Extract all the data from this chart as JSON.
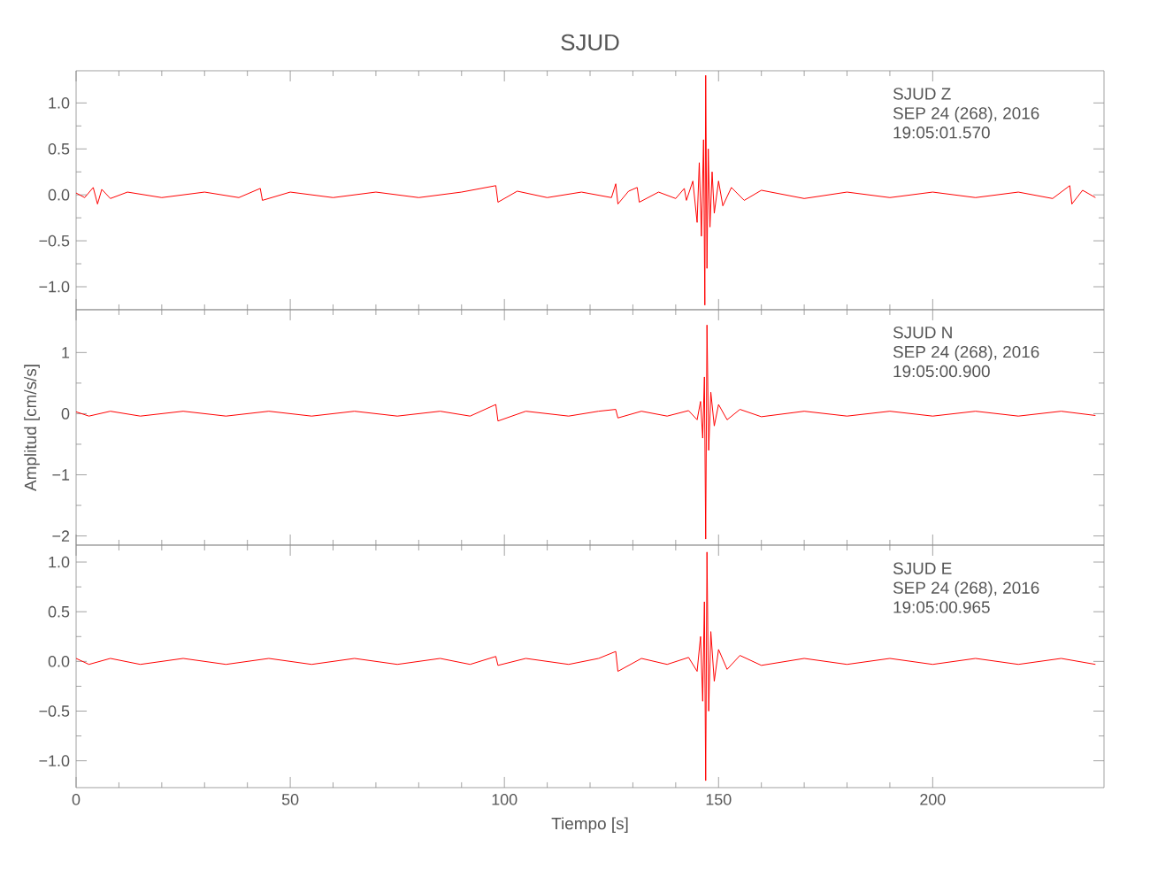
{
  "chart_data": [
    {
      "type": "line",
      "title": "SJUD",
      "annotations": [
        "SJUD Z",
        "SEP 24 (268), 2016",
        "19:05:01.570"
      ],
      "tick_labels": "y",
      "xlim": [
        0,
        240
      ],
      "xticks": [
        0,
        50,
        100,
        150,
        200
      ],
      "ylim": [
        -1.25,
        1.35
      ],
      "yticks": [
        {
          "value": -1,
          "label": "−1.0"
        },
        {
          "value": -0.5,
          "label": "−0.5"
        },
        {
          "value": 0,
          "label": "0.0"
        },
        {
          "value": 0.5,
          "label": "0.5"
        },
        {
          "value": 1,
          "label": "1.0"
        }
      ],
      "x": [
        0,
        2,
        4,
        5,
        6,
        8,
        12,
        20,
        30,
        38,
        43,
        43.5,
        50,
        60,
        70,
        80,
        90,
        98,
        98.5,
        103,
        110,
        118,
        125,
        126,
        126.5,
        129,
        131,
        131.5,
        136,
        140,
        142,
        142.5,
        144,
        145,
        145.5,
        146,
        146.5,
        146.8,
        147,
        147.3,
        147.6,
        148,
        148.5,
        149,
        150,
        151,
        153,
        156,
        160,
        170,
        180,
        190,
        200,
        210,
        220,
        228,
        232,
        232.5,
        235,
        238
      ],
      "series": [
        {
          "color": "#ff0000",
          "values": [
            0.02,
            -0.03,
            0.08,
            -0.1,
            0.06,
            -0.04,
            0.03,
            -0.03,
            0.03,
            -0.03,
            0.07,
            -0.06,
            0.03,
            -0.03,
            0.03,
            -0.03,
            0.03,
            0.1,
            -0.08,
            0.04,
            -0.03,
            0.03,
            -0.03,
            0.12,
            -0.1,
            0.04,
            0.08,
            -0.08,
            0.03,
            -0.04,
            0.07,
            -0.06,
            0.15,
            -0.3,
            0.35,
            -0.45,
            0.6,
            -1.2,
            1.3,
            -0.8,
            0.5,
            -0.35,
            0.25,
            -0.2,
            0.15,
            -0.12,
            0.08,
            -0.06,
            0.05,
            -0.04,
            0.03,
            -0.03,
            0.03,
            -0.03,
            0.03,
            -0.04,
            0.1,
            -0.1,
            0.05,
            -0.03
          ]
        }
      ]
    },
    {
      "type": "line",
      "ylabel": "Amplitud [cm/s/s]",
      "annotations": [
        "SJUD N",
        "SEP 24 (268), 2016",
        "19:05:00.900"
      ],
      "tick_labels": "y",
      "xlim": [
        0,
        240
      ],
      "xticks": [
        0,
        50,
        100,
        150,
        200
      ],
      "ylim": [
        -2.15,
        1.7
      ],
      "yticks": [
        {
          "value": -2,
          "label": "−2"
        },
        {
          "value": -1,
          "label": "−1"
        },
        0,
        1
      ],
      "x": [
        0,
        3,
        8,
        15,
        25,
        35,
        45,
        55,
        65,
        75,
        85,
        92,
        98,
        98.5,
        105,
        115,
        122,
        126,
        126.5,
        132,
        138,
        143,
        145,
        145.8,
        146.3,
        146.7,
        147,
        147.3,
        147.7,
        148.2,
        149,
        150,
        152,
        155,
        160,
        170,
        180,
        190,
        200,
        210,
        220,
        230,
        238
      ],
      "series": [
        {
          "color": "#ff0000",
          "values": [
            0.03,
            -0.04,
            0.04,
            -0.04,
            0.04,
            -0.04,
            0.04,
            -0.04,
            0.04,
            -0.04,
            0.04,
            -0.04,
            0.15,
            -0.12,
            0.04,
            -0.04,
            0.04,
            0.07,
            -0.07,
            0.04,
            -0.04,
            0.05,
            -0.1,
            0.2,
            -0.4,
            0.6,
            -2.05,
            1.45,
            -0.6,
            0.35,
            -0.2,
            0.15,
            -0.1,
            0.07,
            -0.05,
            0.04,
            -0.04,
            0.04,
            -0.04,
            0.04,
            -0.04,
            0.04,
            -0.03
          ]
        }
      ]
    },
    {
      "type": "line",
      "xlabel": "Tiempo [s]",
      "annotations": [
        "SJUD E",
        "SEP 24 (268), 2016",
        "19:05:00.965"
      ],
      "xlim": [
        0,
        240
      ],
      "xticks": [
        0,
        50,
        100,
        150,
        200
      ],
      "ylim": [
        -1.27,
        1.17
      ],
      "yticks": [
        {
          "value": -1,
          "label": "−1.0"
        },
        {
          "value": -0.5,
          "label": "−0.5"
        },
        {
          "value": 0,
          "label": "0.0"
        },
        {
          "value": 0.5,
          "label": "0.5"
        },
        {
          "value": 1,
          "label": "1.0"
        }
      ],
      "x": [
        0,
        3,
        8,
        15,
        25,
        35,
        45,
        55,
        65,
        75,
        85,
        92,
        98,
        98.5,
        105,
        115,
        122,
        126,
        126.5,
        132,
        138,
        143,
        145,
        145.8,
        146.3,
        146.7,
        147,
        147.3,
        147.7,
        148.2,
        149,
        150,
        152,
        155,
        160,
        170,
        180,
        190,
        200,
        210,
        220,
        230,
        238
      ],
      "series": [
        {
          "color": "#ff0000",
          "values": [
            0.03,
            -0.03,
            0.03,
            -0.03,
            0.03,
            -0.03,
            0.03,
            -0.03,
            0.03,
            -0.03,
            0.03,
            -0.03,
            0.05,
            -0.04,
            0.03,
            -0.03,
            0.03,
            0.1,
            -0.1,
            0.03,
            -0.03,
            0.04,
            -0.1,
            0.25,
            -0.4,
            0.6,
            -1.2,
            1.1,
            -0.5,
            0.3,
            -0.2,
            0.12,
            -0.08,
            0.06,
            -0.04,
            0.03,
            -0.03,
            0.03,
            -0.03,
            0.03,
            -0.03,
            0.03,
            -0.03
          ]
        }
      ]
    }
  ]
}
